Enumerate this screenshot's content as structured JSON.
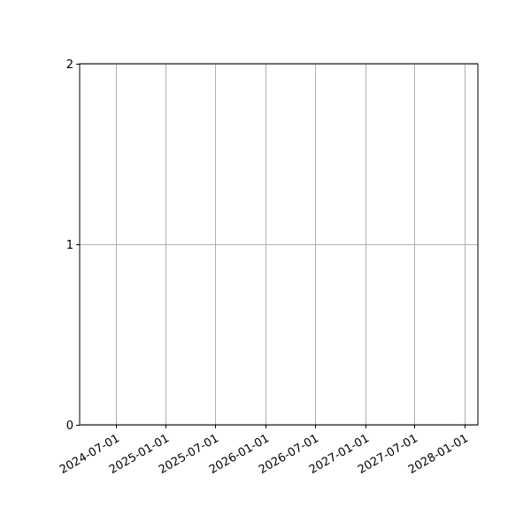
{
  "chart_data": {
    "type": "line",
    "title": "",
    "xlabel": "",
    "ylabel": "",
    "x_axis_type": "date",
    "xlim": [
      "2024-02-20",
      "2028-02-18"
    ],
    "ylim": [
      0,
      2
    ],
    "x_ticks": [
      "2024-07-01",
      "2025-01-01",
      "2025-07-01",
      "2026-01-01",
      "2026-07-01",
      "2027-01-01",
      "2027-07-01",
      "2028-01-01"
    ],
    "y_ticks": [
      "0",
      "1",
      "2"
    ],
    "grid": true,
    "series": [],
    "colors": {
      "axis": "#000000",
      "grid": "#b0b0b0",
      "background": "#ffffff"
    }
  }
}
